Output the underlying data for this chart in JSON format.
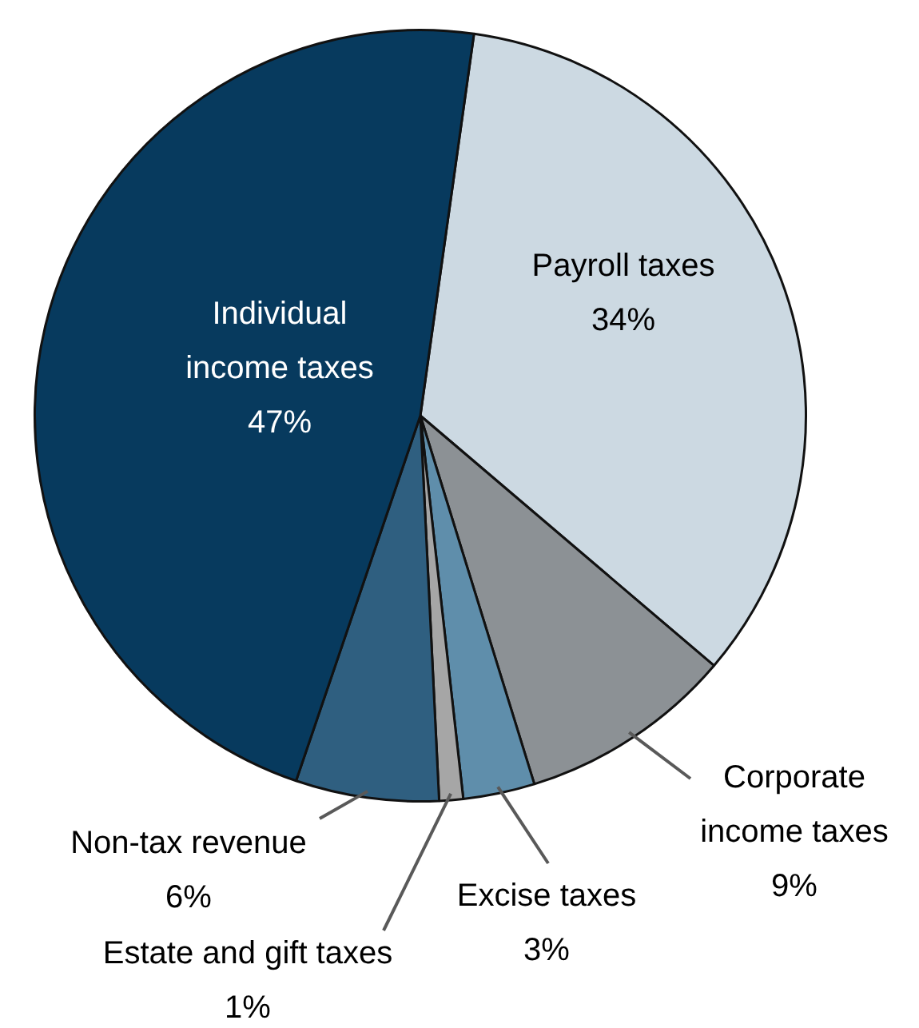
{
  "chart_data": {
    "type": "pie",
    "categories": [
      "Payroll taxes",
      "Corporate income taxes",
      "Excise taxes",
      "Estate and gift taxes",
      "Non-tax revenue",
      "Individual income taxes"
    ],
    "values": [
      34,
      9,
      3,
      1,
      6,
      47
    ],
    "colors": [
      "#ccd9e2",
      "#8c9195",
      "#5f8eab",
      "#a6a6a6",
      "#2f5f80",
      "#073a5e"
    ],
    "value_labels": [
      "34%",
      "9%",
      "3%",
      "1%",
      "6%",
      "47%"
    ],
    "legend": false
  }
}
